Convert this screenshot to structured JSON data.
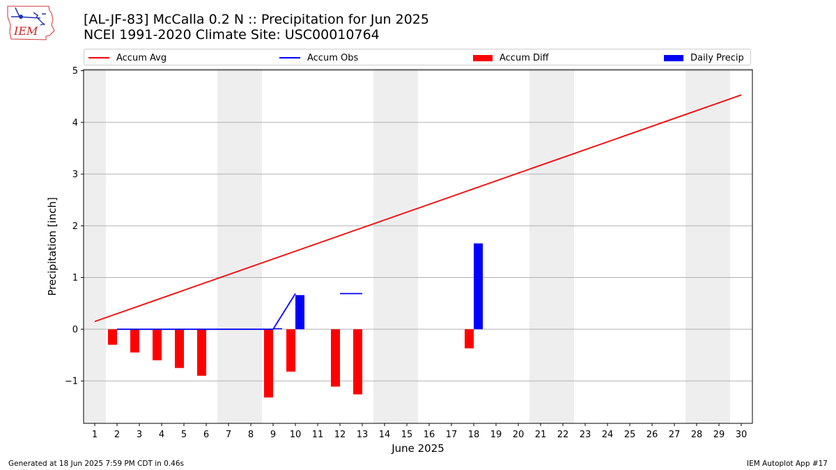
{
  "logo_text": "IEM",
  "title_line1": "[AL-JF-83] McCalla 0.2 N :: Precipitation for Jun 2025",
  "title_line2": "NCEI 1991-2020 Climate Site: USC00010764",
  "footer_left": "Generated at 18 Jun 2025 7:59 PM CDT in 0.46s",
  "footer_right": "IEM Autoplot App #17",
  "legend": [
    {
      "label": "Accum Avg",
      "kind": "line",
      "color": "#ff0000"
    },
    {
      "label": "Accum Obs",
      "kind": "line",
      "color": "#0000ff"
    },
    {
      "label": "Accum Diff",
      "kind": "box",
      "color": "#ff0000"
    },
    {
      "label": "Daily Precip",
      "kind": "box",
      "color": "#0000ff"
    }
  ],
  "chart_data": {
    "type": "bar",
    "xlabel": "June 2025",
    "ylabel": "Precipitation [inch]",
    "xlim": [
      0.5,
      30.5
    ],
    "ylim": [
      -1.82,
      5.02
    ],
    "yticks": [
      -1,
      0,
      1,
      2,
      3,
      4,
      5
    ],
    "ytick_labels": [
      "−1",
      "0",
      "1",
      "2",
      "3",
      "4",
      "5"
    ],
    "xticks": [
      1,
      2,
      3,
      4,
      5,
      6,
      7,
      8,
      9,
      10,
      11,
      12,
      13,
      14,
      15,
      16,
      17,
      18,
      19,
      20,
      21,
      22,
      23,
      24,
      25,
      26,
      27,
      28,
      29,
      30
    ],
    "grid": "horizontal",
    "weekend_shading": [
      [
        0.5,
        1.5
      ],
      [
        6.5,
        8.5
      ],
      [
        13.5,
        15.5
      ],
      [
        20.5,
        22.5
      ],
      [
        27.5,
        29.5
      ]
    ],
    "shade_color": "#eeeeee",
    "series": [
      {
        "name": "Accum Avg",
        "type": "line",
        "color": "#ff0000",
        "x": [
          1,
          30
        ],
        "values": [
          0.15,
          4.53
        ]
      },
      {
        "name": "Accum Obs",
        "type": "line",
        "color": "#0000ff",
        "x": [
          2,
          3,
          4,
          5,
          6,
          9,
          10
        ],
        "values": [
          0,
          0,
          0,
          0,
          0,
          0,
          0.69
        ]
      },
      {
        "name": "Accum Obs",
        "type": "line",
        "color": "#0000ff",
        "x": [
          12,
          13
        ],
        "values": [
          0.69,
          0.69
        ]
      },
      {
        "name": "Accum Diff",
        "type": "bar",
        "color": "#ff0000",
        "x": [
          2,
          3,
          4,
          5,
          6,
          9,
          10,
          12,
          13,
          18
        ],
        "values": [
          -0.3,
          -0.45,
          -0.6,
          -0.75,
          -0.9,
          -1.32,
          -0.82,
          -1.11,
          -1.26,
          -0.37
        ]
      },
      {
        "name": "Daily Precip",
        "type": "bar",
        "color": "#0000ff",
        "x": [
          9,
          10,
          18
        ],
        "values": [
          0.02,
          0.66,
          1.66
        ]
      }
    ]
  }
}
